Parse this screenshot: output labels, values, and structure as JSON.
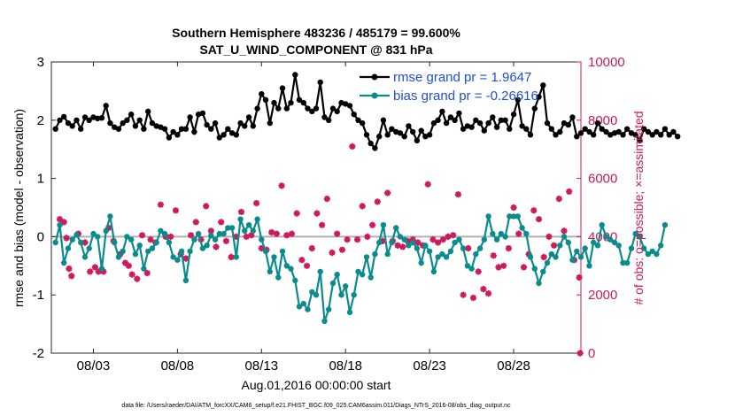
{
  "chart_data": {
    "type": "line",
    "title": "Southern Hemisphere 483236 / 485179 = 99.600%",
    "subtitle": "SAT_U_WIND_COMPONENT @ 831 hPa",
    "ylabel": "rmse and bias (model - observation)",
    "ylabel_right": "# of obs: o=possible; ×=assimilated",
    "xlabel": "Aug.01,2016 00:00:00 start",
    "ylim": [
      -2,
      3
    ],
    "ylim_right": [
      0,
      10000
    ],
    "xlim": [
      0.5,
      32.0
    ],
    "yticks": [
      "-2",
      "-1",
      "0",
      "1",
      "2",
      "3"
    ],
    "yticks_right": [
      "0",
      "2000",
      "4000",
      "6000",
      "8000",
      "10000"
    ],
    "xticks": [
      {
        "day": 3,
        "label": "08/03"
      },
      {
        "day": 8,
        "label": "08/08"
      },
      {
        "day": 13,
        "label": "08/13"
      },
      {
        "day": 18,
        "label": "08/18"
      },
      {
        "day": 23,
        "label": "08/23"
      },
      {
        "day": 28,
        "label": "08/28"
      }
    ],
    "legend": [
      "rmse grand pr = 1.9647",
      "bias grand pr = -0.26616"
    ],
    "footnote": "data file: /Users/raeder/DAI/ATM_forcXX/CAM6_setup/f.e21.FHIST_BGC.f09_025.CAM6assim.011/Diags_NTrS_2016-08/obs_diag_output.nc",
    "colors": {
      "rmse": "#000000",
      "bias": "#0a8c8c",
      "obs": "#cc1a5a",
      "zero": "#b0b0b0"
    },
    "series": [
      {
        "name": "rmse",
        "t0": 0.75,
        "dt": 0.25,
        "values": [
          1.85,
          2.0,
          2.06,
          1.95,
          1.9,
          2.0,
          1.85,
          2.05,
          2.0,
          2.05,
          2.03,
          2.04,
          2.25,
          1.95,
          1.88,
          1.85,
          1.95,
          2.0,
          2.1,
          1.9,
          2.0,
          1.85,
          2.15,
          1.95,
          1.9,
          1.88,
          1.85,
          1.7,
          1.8,
          1.75,
          1.85,
          1.85,
          2.05,
          1.8,
          2.1,
          2.12,
          1.92,
          1.85,
          1.95,
          1.7,
          1.75,
          1.85,
          1.78,
          1.75,
          1.95,
          1.9,
          2.05,
          1.9,
          2.2,
          2.45,
          2.35,
          1.95,
          2.3,
          2.2,
          2.55,
          2.2,
          2.3,
          2.78,
          2.35,
          2.3,
          2.2,
          2.15,
          2.2,
          2.65,
          2.05,
          2.0,
          2.2,
          2.15,
          2.3,
          2.28,
          2.25,
          2.1,
          2.0,
          1.95,
          1.75,
          1.6,
          1.52,
          1.72,
          2.0,
          1.75,
          1.85,
          1.8,
          1.78,
          1.72,
          1.9,
          1.8,
          1.65,
          1.82,
          1.72,
          1.75,
          1.95,
          2.0,
          2.15,
          1.95,
          2.05,
          2.0,
          2.12,
          1.85,
          1.9,
          1.88,
          2.0,
          1.95,
          1.82,
          1.95,
          2.05,
          1.88,
          2.0,
          2.0,
          1.85,
          2.1,
          2.35,
          1.9,
          1.85,
          1.75,
          2.2,
          2.4,
          2.6,
          1.95,
          1.85,
          1.75,
          1.8,
          1.95,
          1.92,
          2.05,
          1.72,
          1.78,
          1.85,
          1.8,
          1.75,
          1.95,
          1.85,
          1.8,
          1.75,
          1.78,
          1.8,
          1.75,
          1.85,
          1.78,
          1.75,
          1.65,
          1.85,
          1.8,
          1.75,
          1.8,
          1.75,
          1.85,
          1.75,
          1.8,
          1.72
        ]
      },
      {
        "name": "bias",
        "t0": 0.75,
        "dt": 0.25,
        "values": [
          -0.1,
          0.2,
          -0.45,
          -0.2,
          -0.05,
          0.03,
          -0.1,
          -0.35,
          -0.2,
          0.05,
          0.0,
          -0.55,
          0.1,
          0.35,
          -0.1,
          -0.35,
          -0.25,
          0.0,
          -0.05,
          -0.3,
          -0.15,
          -0.55,
          -0.25,
          -0.2,
          -0.1,
          0.1,
          0.05,
          -0.1,
          -0.35,
          -0.4,
          -0.25,
          -0.75,
          -0.25,
          -0.05,
          0.05,
          -0.2,
          -0.15,
          0.02,
          -0.05,
          0.05,
          0.05,
          0.15,
          0.15,
          -0.35,
          0.3,
          0.1,
          0.2,
          0.1,
          0.3,
          -0.05,
          -0.25,
          -0.6,
          -0.35,
          -0.7,
          -0.25,
          -0.5,
          -0.55,
          -0.75,
          -1.2,
          -1.15,
          -1.25,
          -0.95,
          -1.0,
          -0.6,
          -1.45,
          -1.25,
          -0.8,
          -0.65,
          -1.0,
          -0.85,
          -1.3,
          -1.0,
          -0.6,
          -0.65,
          -0.35,
          -0.7,
          -0.3,
          -0.1,
          0.2,
          -0.3,
          -0.1,
          0.15,
          0.0,
          -0.05,
          -0.15,
          -0.1,
          -0.2,
          -0.45,
          -0.15,
          -0.25,
          -0.6,
          -0.35,
          -0.3,
          -0.35,
          -0.25,
          -0.1,
          -0.05,
          -0.2,
          -0.5,
          -0.55,
          -0.3,
          -0.2,
          -0.05,
          0.35,
          0.05,
          -0.05,
          0.05,
          0.0,
          0.35,
          0.35,
          0.35,
          0.15,
          0.05,
          -0.35,
          -0.55,
          -0.8,
          -0.6,
          -0.45,
          -0.3,
          -0.35,
          -0.15,
          0.0,
          -0.1,
          -0.4,
          -0.25,
          -0.35,
          -0.2,
          -0.5,
          -0.1,
          -0.15,
          0.2,
          0.0,
          -0.05,
          -0.1,
          -0.15,
          -0.45,
          -0.45,
          -0.2,
          0.05,
          0.0,
          -0.2,
          -0.3,
          -0.25,
          -0.3,
          -0.15,
          0.2
        ]
      },
      {
        "name": "obs_assimilated",
        "points": [
          {
            "t": 1.0,
            "v": 4600
          },
          {
            "t": 1.25,
            "v": 4500
          },
          {
            "t": 1.4,
            "v": 3950
          },
          {
            "t": 1.55,
            "v": 2900
          },
          {
            "t": 1.7,
            "v": 2650
          },
          {
            "t": 2.1,
            "v": 4100
          },
          {
            "t": 2.5,
            "v": 3800
          },
          {
            "t": 2.8,
            "v": 2800
          },
          {
            "t": 3.1,
            "v": 2950
          },
          {
            "t": 3.3,
            "v": 2800
          },
          {
            "t": 3.6,
            "v": 2800
          },
          {
            "t": 3.9,
            "v": 4300
          },
          {
            "t": 4.2,
            "v": 3850
          },
          {
            "t": 4.6,
            "v": 3400
          },
          {
            "t": 4.9,
            "v": 3100
          },
          {
            "t": 5.1,
            "v": 3000
          },
          {
            "t": 5.3,
            "v": 2700
          },
          {
            "t": 5.6,
            "v": 2550
          },
          {
            "t": 5.9,
            "v": 4050
          },
          {
            "t": 6.2,
            "v": 2750
          },
          {
            "t": 6.4,
            "v": 3900
          },
          {
            "t": 6.7,
            "v": 3800
          },
          {
            "t": 7.0,
            "v": 5100
          },
          {
            "t": 7.3,
            "v": 4000
          },
          {
            "t": 7.6,
            "v": 4000
          },
          {
            "t": 7.9,
            "v": 4900
          },
          {
            "t": 8.2,
            "v": 3400
          },
          {
            "t": 8.5,
            "v": 3250
          },
          {
            "t": 8.8,
            "v": 4050
          },
          {
            "t": 9.1,
            "v": 4500
          },
          {
            "t": 9.4,
            "v": 3900
          },
          {
            "t": 9.7,
            "v": 5050
          },
          {
            "t": 10.0,
            "v": 4200
          },
          {
            "t": 10.3,
            "v": 3650
          },
          {
            "t": 10.6,
            "v": 4500
          },
          {
            "t": 10.9,
            "v": 3850
          },
          {
            "t": 11.2,
            "v": 3300
          },
          {
            "t": 11.5,
            "v": 4000
          },
          {
            "t": 11.8,
            "v": 4850
          },
          {
            "t": 12.1,
            "v": 4000
          },
          {
            "t": 12.4,
            "v": 4050
          },
          {
            "t": 12.7,
            "v": 5150
          },
          {
            "t": 13.0,
            "v": 3600
          },
          {
            "t": 13.3,
            "v": 3550
          },
          {
            "t": 13.6,
            "v": 4150
          },
          {
            "t": 13.9,
            "v": 4100
          },
          {
            "t": 14.2,
            "v": 5750
          },
          {
            "t": 14.5,
            "v": 4050
          },
          {
            "t": 14.8,
            "v": 4100
          },
          {
            "t": 15.1,
            "v": 4800
          },
          {
            "t": 15.4,
            "v": 3200
          },
          {
            "t": 15.7,
            "v": 3000
          },
          {
            "t": 16.0,
            "v": 3600
          },
          {
            "t": 16.3,
            "v": 4800
          },
          {
            "t": 16.6,
            "v": 4400
          },
          {
            "t": 16.9,
            "v": 5300
          },
          {
            "t": 17.2,
            "v": 3450
          },
          {
            "t": 17.5,
            "v": 4100
          },
          {
            "t": 17.8,
            "v": 3550
          },
          {
            "t": 18.1,
            "v": 3900
          },
          {
            "t": 18.4,
            "v": 7100
          },
          {
            "t": 18.7,
            "v": 3900
          },
          {
            "t": 19.0,
            "v": 5050
          },
          {
            "t": 19.3,
            "v": 4000
          },
          {
            "t": 19.6,
            "v": 4400
          },
          {
            "t": 19.9,
            "v": 5200
          },
          {
            "t": 20.2,
            "v": 3850
          },
          {
            "t": 20.5,
            "v": 5500
          },
          {
            "t": 20.8,
            "v": 3850
          },
          {
            "t": 21.1,
            "v": 3700
          },
          {
            "t": 21.4,
            "v": 3650
          },
          {
            "t": 21.7,
            "v": 3850
          },
          {
            "t": 22.0,
            "v": 3900
          },
          {
            "t": 22.3,
            "v": 3800
          },
          {
            "t": 22.6,
            "v": 3700
          },
          {
            "t": 22.9,
            "v": 5800
          },
          {
            "t": 23.2,
            "v": 3900
          },
          {
            "t": 23.5,
            "v": 3800
          },
          {
            "t": 23.8,
            "v": 3900
          },
          {
            "t": 24.1,
            "v": 4000
          },
          {
            "t": 24.4,
            "v": 4050
          },
          {
            "t": 24.7,
            "v": 5450
          },
          {
            "t": 25.0,
            "v": 2000
          },
          {
            "t": 25.3,
            "v": 3600
          },
          {
            "t": 25.6,
            "v": 1900
          },
          {
            "t": 25.9,
            "v": 2800
          },
          {
            "t": 26.2,
            "v": 2200
          },
          {
            "t": 26.5,
            "v": 2050
          },
          {
            "t": 26.8,
            "v": 3350
          },
          {
            "t": 27.1,
            "v": 2950
          },
          {
            "t": 27.4,
            "v": 3000
          },
          {
            "t": 27.7,
            "v": 3600
          },
          {
            "t": 28.0,
            "v": 5000
          },
          {
            "t": 28.3,
            "v": 4100
          },
          {
            "t": 28.6,
            "v": 2950
          },
          {
            "t": 28.9,
            "v": 3400
          },
          {
            "t": 29.2,
            "v": 4900
          },
          {
            "t": 29.5,
            "v": 4600
          },
          {
            "t": 29.8,
            "v": 3300
          },
          {
            "t": 30.1,
            "v": 4000
          },
          {
            "t": 30.4,
            "v": 3700
          },
          {
            "t": 30.7,
            "v": 5300
          },
          {
            "t": 31.0,
            "v": 4200
          },
          {
            "t": 31.3,
            "v": 5550
          },
          {
            "t": 31.6,
            "v": 3200
          },
          {
            "t": 31.9,
            "v": 2600
          },
          {
            "t": 31.95,
            "v": 0
          }
        ]
      }
    ]
  }
}
